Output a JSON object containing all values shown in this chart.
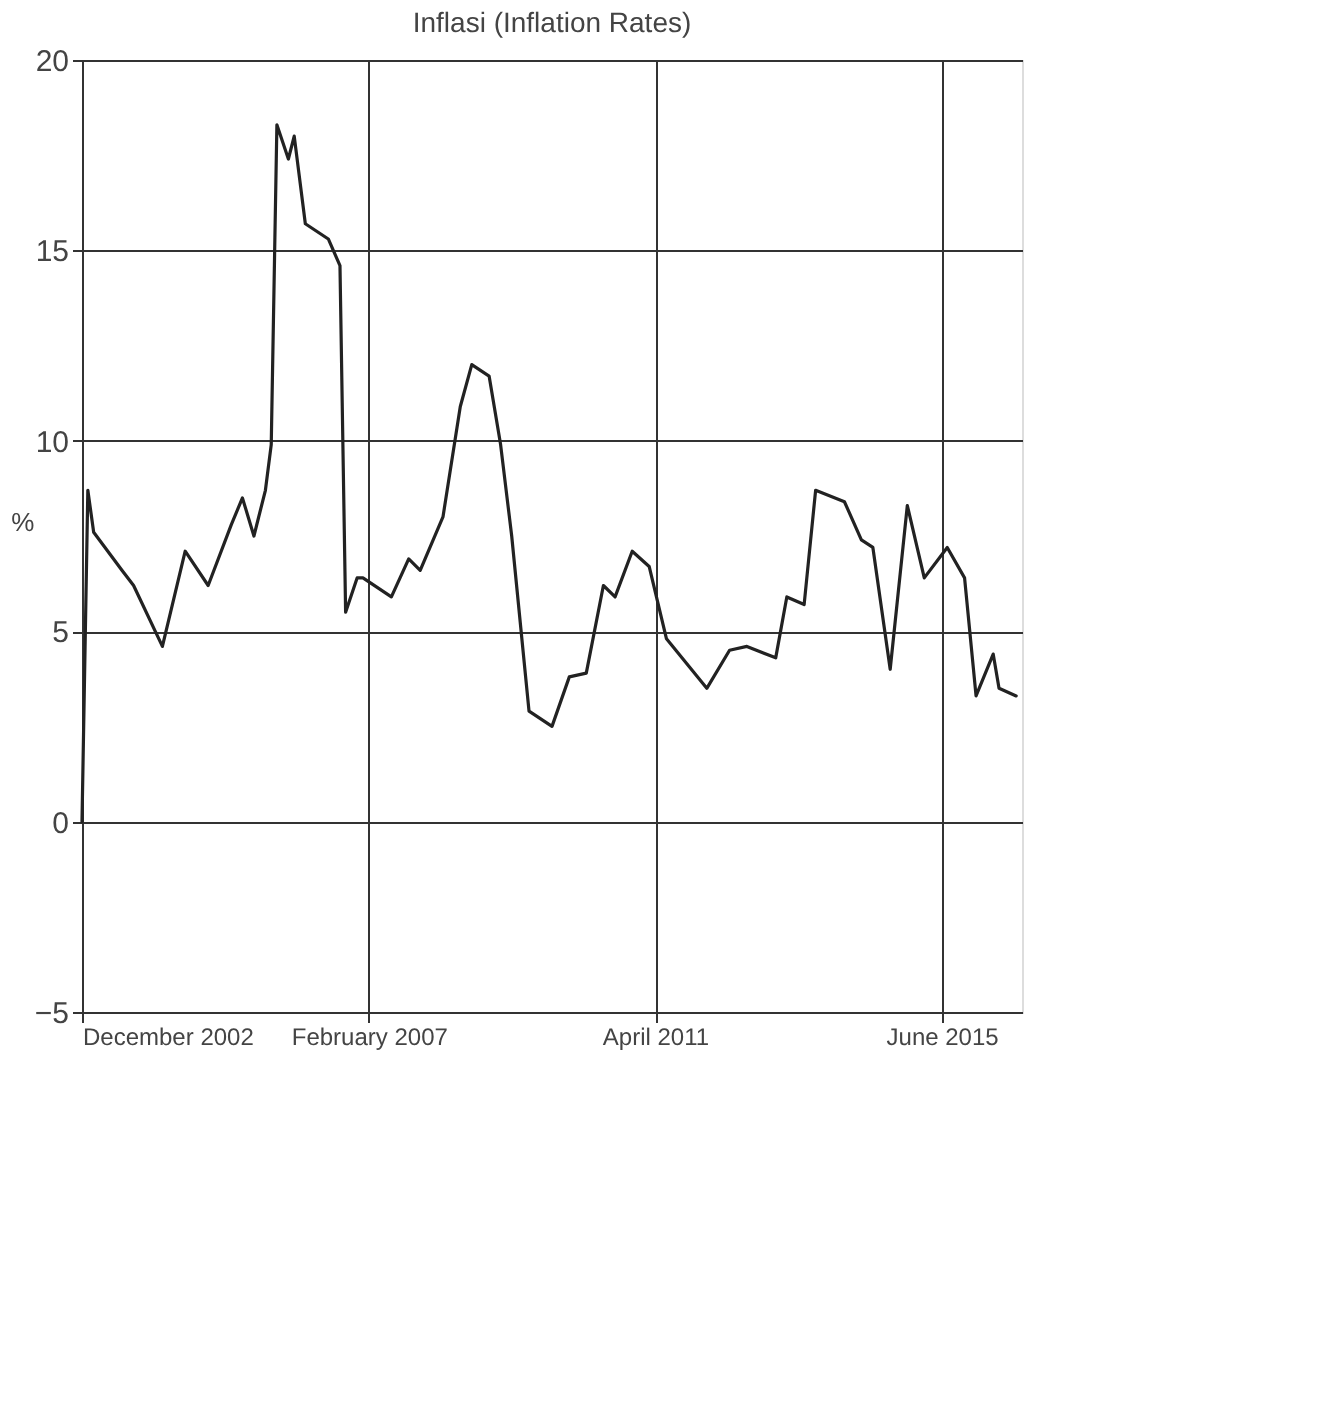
{
  "chart_data": {
    "type": "line",
    "title": "Inflasi (Inflation Rates)",
    "ylabel": "%",
    "x": [
      "2002-12",
      "2003-01",
      "2003-02",
      "2003-07",
      "2003-09",
      "2004-02",
      "2004-06",
      "2004-10",
      "2005-02",
      "2005-04",
      "2005-06",
      "2005-08",
      "2005-09",
      "2005-10",
      "2005-12",
      "2006-01",
      "2006-03",
      "2006-07",
      "2006-09",
      "2006-10",
      "2006-12",
      "2007-01",
      "2007-06",
      "2007-09",
      "2007-11",
      "2008-03",
      "2008-06",
      "2008-08",
      "2008-11",
      "2009-01",
      "2009-03",
      "2009-06",
      "2009-10",
      "2010-01",
      "2010-04",
      "2010-07",
      "2010-09",
      "2010-12",
      "2011-03",
      "2011-06",
      "2012-01",
      "2012-05",
      "2012-08",
      "2013-01",
      "2013-03",
      "2013-06",
      "2013-08",
      "2014-01",
      "2014-04",
      "2014-06",
      "2014-09",
      "2014-12",
      "2015-03",
      "2015-07",
      "2015-10",
      "2015-12",
      "2016-03",
      "2016-04",
      "2016-07"
    ],
    "series": [
      {
        "color": "#222222",
        "values": [
          0,
          8.7,
          7.6,
          6.6,
          6.2,
          4.6,
          7.1,
          6.2,
          7.8,
          8.5,
          7.5,
          8.7,
          9.9,
          18.3,
          17.4,
          18.0,
          15.7,
          15.3,
          14.6,
          5.5,
          6.4,
          6.4,
          5.9,
          6.9,
          6.6,
          8.0,
          10.9,
          12.0,
          11.7,
          9.9,
          7.5,
          2.9,
          2.5,
          3.8,
          3.9,
          6.2,
          5.9,
          7.1,
          6.7,
          4.8,
          3.5,
          4.5,
          4.6,
          4.3,
          5.9,
          5.7,
          8.7,
          8.4,
          7.4,
          7.2,
          4.0,
          8.3,
          6.4,
          7.2,
          6.4,
          3.3,
          4.4,
          3.5,
          3.3
        ]
      }
    ],
    "xlim": [
      "2002-12",
      "2016-08"
    ],
    "xticks": [
      {
        "value": "2002-12",
        "label": "December 2002"
      },
      {
        "value": "2007-02",
        "label": "February 2007"
      },
      {
        "value": "2011-04",
        "label": "April 2011"
      },
      {
        "value": "2015-06",
        "label": "June 2015"
      }
    ],
    "ylim": [
      -5,
      20
    ],
    "yticks": [
      -5,
      0,
      5,
      10,
      15,
      20
    ],
    "grid": true,
    "marker": "none",
    "line_style": "solid"
  }
}
